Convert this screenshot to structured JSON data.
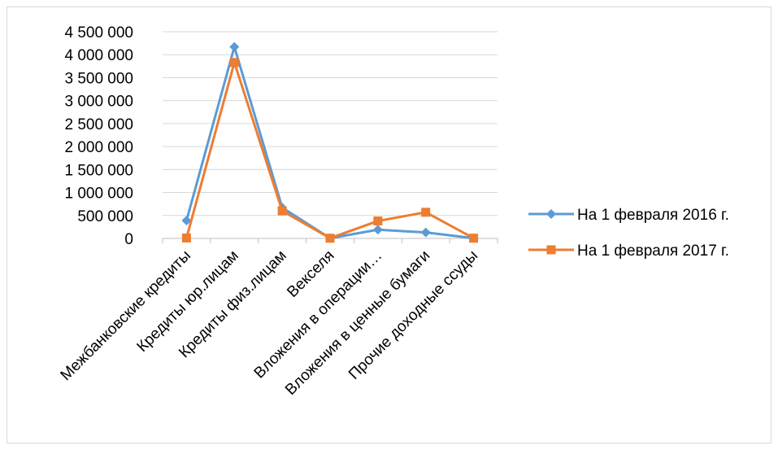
{
  "chart_data": {
    "type": "line",
    "title": "",
    "xlabel": "",
    "ylabel": "",
    "categories": [
      "Межбанковские кредиты",
      "Кредиты юр.лицам",
      "Кредиты физ.лицам",
      "Векселя",
      "Вложения в операции…",
      "Вложения в ценные бумаги",
      "Прочие доходные ссуды"
    ],
    "ylim": [
      0,
      4500000
    ],
    "yticks": [
      0,
      500000,
      1000000,
      1500000,
      2000000,
      2500000,
      3000000,
      3500000,
      4000000,
      4500000
    ],
    "ytick_labels": [
      "0",
      "500 000",
      "1 000 000",
      "1 500 000",
      "2 000 000",
      "2 500 000",
      "3 000 000",
      "3 500 000",
      "4 000 000",
      "4 500 000"
    ],
    "grid": true,
    "legend_position": "right",
    "series": [
      {
        "name": "На 1 февраля 2016 г.",
        "color": "#5B9BD5",
        "marker": "diamond",
        "values": [
          390000,
          4170000,
          670000,
          5000,
          190000,
          130000,
          5000
        ]
      },
      {
        "name": "На 1 февраля 2017 г.",
        "color": "#ED7D31",
        "marker": "square",
        "values": [
          10000,
          3830000,
          600000,
          5000,
          380000,
          570000,
          5000
        ]
      }
    ]
  }
}
